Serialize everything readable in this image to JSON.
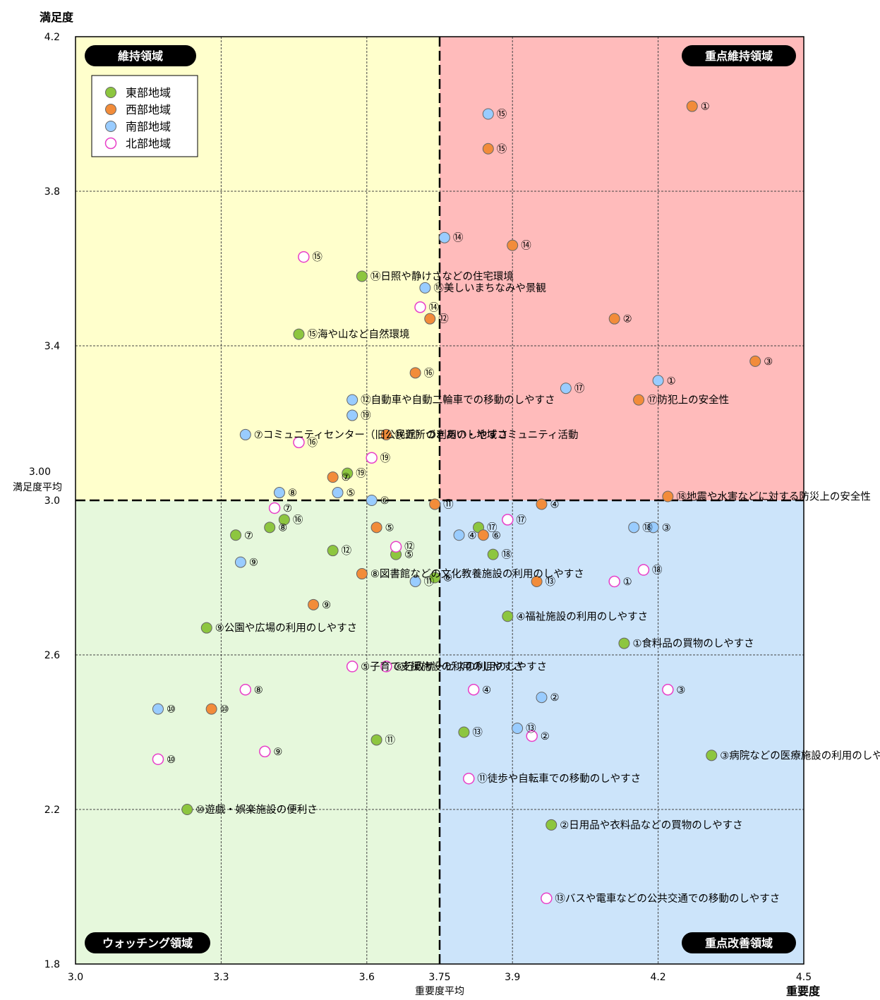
{
  "chart_data": {
    "type": "scatter",
    "xlabel": "重要度",
    "ylabel": "満足度",
    "xlim": [
      3.0,
      4.5
    ],
    "ylim": [
      1.8,
      4.2
    ],
    "x_ticks": [
      "3.0",
      "3.3",
      "3.6",
      "3.75",
      "3.9",
      "4.2",
      "4.5"
    ],
    "y_ticks": [
      "4.2",
      "3.8",
      "3.4",
      "3.00",
      "3.0",
      "2.6",
      "2.2",
      "1.8"
    ],
    "x_average": {
      "value": 3.75,
      "label": "重要度平均"
    },
    "y_average": {
      "value": 3.0,
      "label": "満足度平均"
    },
    "quadrants": {
      "top_left": "維持領域",
      "top_right": "重点維持領域",
      "bottom_left": "ウォッチング領域",
      "bottom_right": "重点改善領域"
    },
    "quadrant_colors": {
      "top_left": "#FFFFCC",
      "top_right": "#FFBBBB",
      "bottom_left": "#E6F8DC",
      "bottom_right": "#CCE4FA"
    },
    "legend_placement": "top-left",
    "series": [
      {
        "name": "東部地域",
        "color": "#8DC63F",
        "points": [
          {
            "x": 4.13,
            "y": 2.63,
            "label": "①食料品の買物のしやすさ"
          },
          {
            "x": 3.98,
            "y": 2.16,
            "label": "②日用品や衣料品などの買物のしやすさ"
          },
          {
            "x": 4.31,
            "y": 2.34,
            "label": "③病院などの医療施設の利用のしやすさ"
          },
          {
            "x": 3.89,
            "y": 2.7,
            "label": "④福祉施設の利用のしやすさ"
          },
          {
            "x": 3.66,
            "y": 2.86,
            "label": "⑤"
          },
          {
            "x": 3.74,
            "y": 2.8,
            "label": "⑥"
          },
          {
            "x": 3.33,
            "y": 2.91,
            "label": "⑦"
          },
          {
            "x": 3.4,
            "y": 2.93,
            "label": "⑧"
          },
          {
            "x": 3.27,
            "y": 2.67,
            "label": "⑨公園や広場の利用のしやすさ"
          },
          {
            "x": 3.23,
            "y": 2.2,
            "label": "⑩遊戯・娯楽施設の便利さ"
          },
          {
            "x": 3.62,
            "y": 2.38,
            "label": "⑪"
          },
          {
            "x": 3.53,
            "y": 2.87,
            "label": "⑫"
          },
          {
            "x": 3.8,
            "y": 2.4,
            "label": "⑬"
          },
          {
            "x": 3.59,
            "y": 3.58,
            "label": "⑭日照や静けさなどの住宅環境"
          },
          {
            "x": 3.46,
            "y": 3.43,
            "label": "⑮海や山など自然環境"
          },
          {
            "x": 3.43,
            "y": 2.95,
            "label": "⑯"
          },
          {
            "x": 3.83,
            "y": 2.93,
            "label": "⑰"
          },
          {
            "x": 3.86,
            "y": 2.86,
            "label": "⑱"
          },
          {
            "x": 3.56,
            "y": 3.07,
            "label": "⑲"
          }
        ]
      },
      {
        "name": "西部地域",
        "color": "#F28C3A",
        "points": [
          {
            "x": 4.27,
            "y": 4.02,
            "label": "①"
          },
          {
            "x": 4.11,
            "y": 3.47,
            "label": "②"
          },
          {
            "x": 4.4,
            "y": 3.36,
            "label": "③"
          },
          {
            "x": 3.96,
            "y": 2.99,
            "label": "④"
          },
          {
            "x": 3.62,
            "y": 2.93,
            "label": "⑤"
          },
          {
            "x": 3.84,
            "y": 2.91,
            "label": "⑥"
          },
          {
            "x": 3.53,
            "y": 3.06,
            "label": "⑦"
          },
          {
            "x": 3.59,
            "y": 2.81,
            "label": "⑧図書館などの文化教養施設の利用のしやすさ"
          },
          {
            "x": 3.49,
            "y": 2.73,
            "label": "⑨"
          },
          {
            "x": 3.28,
            "y": 2.46,
            "label": "⑩"
          },
          {
            "x": 3.74,
            "y": 2.99,
            "label": "⑪"
          },
          {
            "x": 3.73,
            "y": 3.47,
            "label": "⑫"
          },
          {
            "x": 3.95,
            "y": 2.79,
            "label": "⑬"
          },
          {
            "x": 3.9,
            "y": 3.66,
            "label": "⑭"
          },
          {
            "x": 3.85,
            "y": 3.91,
            "label": "⑮"
          },
          {
            "x": 3.7,
            "y": 3.33,
            "label": "⑯"
          },
          {
            "x": 4.16,
            "y": 3.26,
            "label": "⑰防犯上の安全性"
          },
          {
            "x": 4.22,
            "y": 3.01,
            "label": "⑱地震や水害などに対する防災上の安全性"
          },
          {
            "x": 3.64,
            "y": 3.17,
            "label": "⑲近所づきあい・地域コミュニティ活動"
          }
        ]
      },
      {
        "name": "南部地域",
        "color": "#99CCFF",
        "points": [
          {
            "x": 4.2,
            "y": 3.31,
            "label": "①"
          },
          {
            "x": 3.96,
            "y": 2.49,
            "label": "②"
          },
          {
            "x": 4.19,
            "y": 2.93,
            "label": "③"
          },
          {
            "x": 3.79,
            "y": 2.91,
            "label": "④"
          },
          {
            "x": 3.54,
            "y": 3.02,
            "label": "⑤"
          },
          {
            "x": 3.61,
            "y": 3.0,
            "label": "⑥"
          },
          {
            "x": 3.35,
            "y": 3.17,
            "label": "⑦コミュニティセンター（旧公民館）の利用のしやすさ"
          },
          {
            "x": 3.42,
            "y": 3.02,
            "label": "⑧"
          },
          {
            "x": 3.34,
            "y": 2.84,
            "label": "⑨"
          },
          {
            "x": 3.17,
            "y": 2.46,
            "label": "⑩"
          },
          {
            "x": 3.7,
            "y": 2.79,
            "label": "⑪"
          },
          {
            "x": 3.57,
            "y": 3.26,
            "label": "⑫自動車や自動二輪車での移動のしやすさ"
          },
          {
            "x": 3.91,
            "y": 2.41,
            "label": "⑬"
          },
          {
            "x": 3.76,
            "y": 3.68,
            "label": "⑭"
          },
          {
            "x": 3.85,
            "y": 4.0,
            "label": "⑮"
          },
          {
            "x": 3.72,
            "y": 3.55,
            "label": "⑯美しいまちなみや景観"
          },
          {
            "x": 4.01,
            "y": 3.29,
            "label": "⑰"
          },
          {
            "x": 4.15,
            "y": 2.93,
            "label": "⑱"
          },
          {
            "x": 3.57,
            "y": 3.22,
            "label": "⑲"
          }
        ]
      },
      {
        "name": "北部地域",
        "color": "#FFFFFF",
        "stroke": "#E83EC8",
        "points": [
          {
            "x": 4.11,
            "y": 2.79,
            "label": "①"
          },
          {
            "x": 3.94,
            "y": 2.39,
            "label": "②"
          },
          {
            "x": 4.22,
            "y": 2.51,
            "label": "③"
          },
          {
            "x": 3.82,
            "y": 2.51,
            "label": "④"
          },
          {
            "x": 3.57,
            "y": 2.57,
            "label": "⑤子育て支援施設の利用のしやすさ"
          },
          {
            "x": 3.64,
            "y": 2.57,
            "label": "⑥行政サービスの利用のしやすさ"
          },
          {
            "x": 3.41,
            "y": 2.98,
            "label": "⑦"
          },
          {
            "x": 3.35,
            "y": 2.51,
            "label": "⑧"
          },
          {
            "x": 3.39,
            "y": 2.35,
            "label": "⑨"
          },
          {
            "x": 3.17,
            "y": 2.33,
            "label": "⑩"
          },
          {
            "x": 3.81,
            "y": 2.28,
            "label": "⑪徒歩や自転車での移動のしやすさ"
          },
          {
            "x": 3.66,
            "y": 2.88,
            "label": "⑫"
          },
          {
            "x": 3.97,
            "y": 1.97,
            "label": "⑬バスや電車などの公共交通での移動のしやすさ"
          },
          {
            "x": 3.71,
            "y": 3.5,
            "label": "⑭"
          },
          {
            "x": 3.47,
            "y": 3.63,
            "label": "⑮"
          },
          {
            "x": 3.46,
            "y": 3.15,
            "label": "⑯"
          },
          {
            "x": 3.89,
            "y": 2.95,
            "label": "⑰"
          },
          {
            "x": 4.17,
            "y": 2.82,
            "label": "⑱"
          },
          {
            "x": 3.61,
            "y": 3.11,
            "label": "⑲"
          }
        ]
      }
    ]
  }
}
